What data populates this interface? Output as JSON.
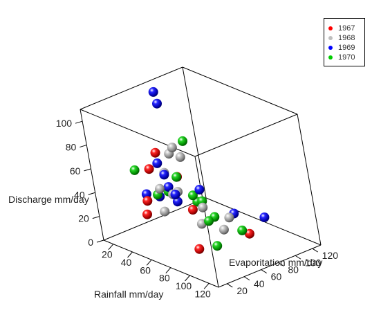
{
  "chart_data": {
    "type": "scatter3d",
    "xlabel": "Rainfall mm/day",
    "ylabel": "Evaporitation mm/day",
    "zlabel": "Discharge mm/day",
    "x_ticks": [
      "20",
      "40",
      "60",
      "80",
      "100",
      "120"
    ],
    "y_ticks": [
      "20",
      "40",
      "60",
      "80",
      "100",
      "120"
    ],
    "z_ticks": [
      "0",
      "20",
      "40",
      "60",
      "80",
      "100"
    ],
    "xlim": [
      10,
      130
    ],
    "ylim": [
      10,
      130
    ],
    "zlim": [
      0,
      110
    ],
    "legend_position": "top-right",
    "series": [
      {
        "name": "1967",
        "color": "#ff0000",
        "points": [
          {
            "x": 31,
            "y": 93,
            "z": 8
          },
          {
            "x": 28,
            "y": 85,
            "z": 37
          },
          {
            "x": 52,
            "y": 22,
            "z": 32
          },
          {
            "x": 56,
            "y": 21,
            "z": 45
          },
          {
            "x": 57,
            "y": 28,
            "z": 70
          },
          {
            "x": 59,
            "y": 36,
            "z": 82
          },
          {
            "x": 88,
            "y": 95,
            "z": 6
          },
          {
            "x": 112,
            "y": 14,
            "z": 25
          }
        ]
      },
      {
        "name": "1968",
        "color": "#bebebe",
        "points": [
          {
            "x": 56,
            "y": 50,
            "z": 42
          },
          {
            "x": 62,
            "y": 50,
            "z": 46
          },
          {
            "x": 64,
            "y": 30,
            "z": 36
          },
          {
            "x": 65,
            "y": 28,
            "z": 56
          },
          {
            "x": 68,
            "y": 33,
            "z": 69
          },
          {
            "x": 69,
            "y": 41,
            "z": 83
          },
          {
            "x": 76,
            "y": 46,
            "z": 81
          },
          {
            "x": 79,
            "y": 36,
            "z": 93
          },
          {
            "x": 56,
            "y": 80,
            "z": 22
          },
          {
            "x": 60,
            "y": 103,
            "z": 8
          },
          {
            "x": 91,
            "y": 42,
            "z": 31
          },
          {
            "x": 92,
            "y": 64,
            "z": 20
          }
        ]
      },
      {
        "name": "1969",
        "color": "#0000ff",
        "points": [
          {
            "x": 38,
            "y": 64,
            "z": 38
          },
          {
            "x": 44,
            "y": 47,
            "z": 37
          },
          {
            "x": 47,
            "y": 30,
            "z": 45
          },
          {
            "x": 59,
            "y": 110,
            "z": 9
          },
          {
            "x": 63,
            "y": 47,
            "z": 39
          },
          {
            "x": 69,
            "y": 40,
            "z": 49
          },
          {
            "x": 75,
            "y": 127,
            "z": 6
          },
          {
            "x": 77,
            "y": 24,
            "z": 73
          },
          {
            "x": 88,
            "y": 8,
            "z": 91
          },
          {
            "x": 96,
            "y": 10,
            "z": 153
          },
          {
            "x": 103,
            "y": 5,
            "z": 147
          },
          {
            "x": 121,
            "y": 17,
            "z": 77
          }
        ]
      },
      {
        "name": "1970",
        "color": "#00cc00",
        "points": [
          {
            "x": 20,
            "y": 110,
            "z": 6
          },
          {
            "x": 34,
            "y": 67,
            "z": 32
          },
          {
            "x": 38,
            "y": 98,
            "z": 16
          },
          {
            "x": 47,
            "y": 42,
            "z": 41
          },
          {
            "x": 49,
            "y": 64,
            "z": 50
          },
          {
            "x": 59,
            "y": 10,
            "z": 75
          },
          {
            "x": 68,
            "y": 60,
            "z": 42
          },
          {
            "x": 84,
            "y": 64,
            "z": 28
          },
          {
            "x": 101,
            "y": 75,
            "z": 19
          },
          {
            "x": 106,
            "y": 40,
            "z": 18
          },
          {
            "x": 117,
            "y": 12,
            "z": 118
          },
          {
            "x": 117,
            "y": 25,
            "z": 47
          }
        ]
      }
    ]
  }
}
